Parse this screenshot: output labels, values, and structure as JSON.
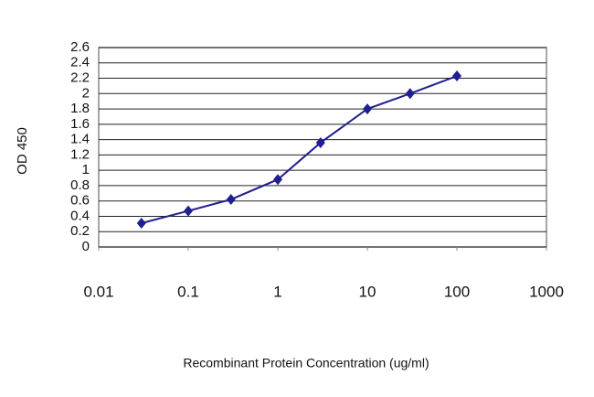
{
  "chart_data": {
    "type": "line",
    "x_label": "Recombinant Protein Concentration (ug/ml)",
    "y_label": "OD 450",
    "x": [
      0.03,
      0.1,
      0.3,
      1,
      3,
      10,
      30,
      100
    ],
    "series": [
      {
        "color": "#1f1f8f",
        "values": [
          0.31,
          0.47,
          0.62,
          0.88,
          1.36,
          1.8,
          2.0,
          2.23
        ]
      }
    ],
    "xscale": "log",
    "xlim": [
      0.01,
      1000
    ],
    "xticks": [
      0.01,
      0.1,
      1,
      10,
      100,
      1000
    ],
    "ylim": [
      0,
      2.6
    ],
    "yticks": [
      0,
      0.2,
      0.4,
      0.6,
      0.8,
      1,
      1.2,
      1.4,
      1.6,
      1.8,
      2,
      2.2,
      2.4,
      2.6
    ],
    "grid": true
  }
}
